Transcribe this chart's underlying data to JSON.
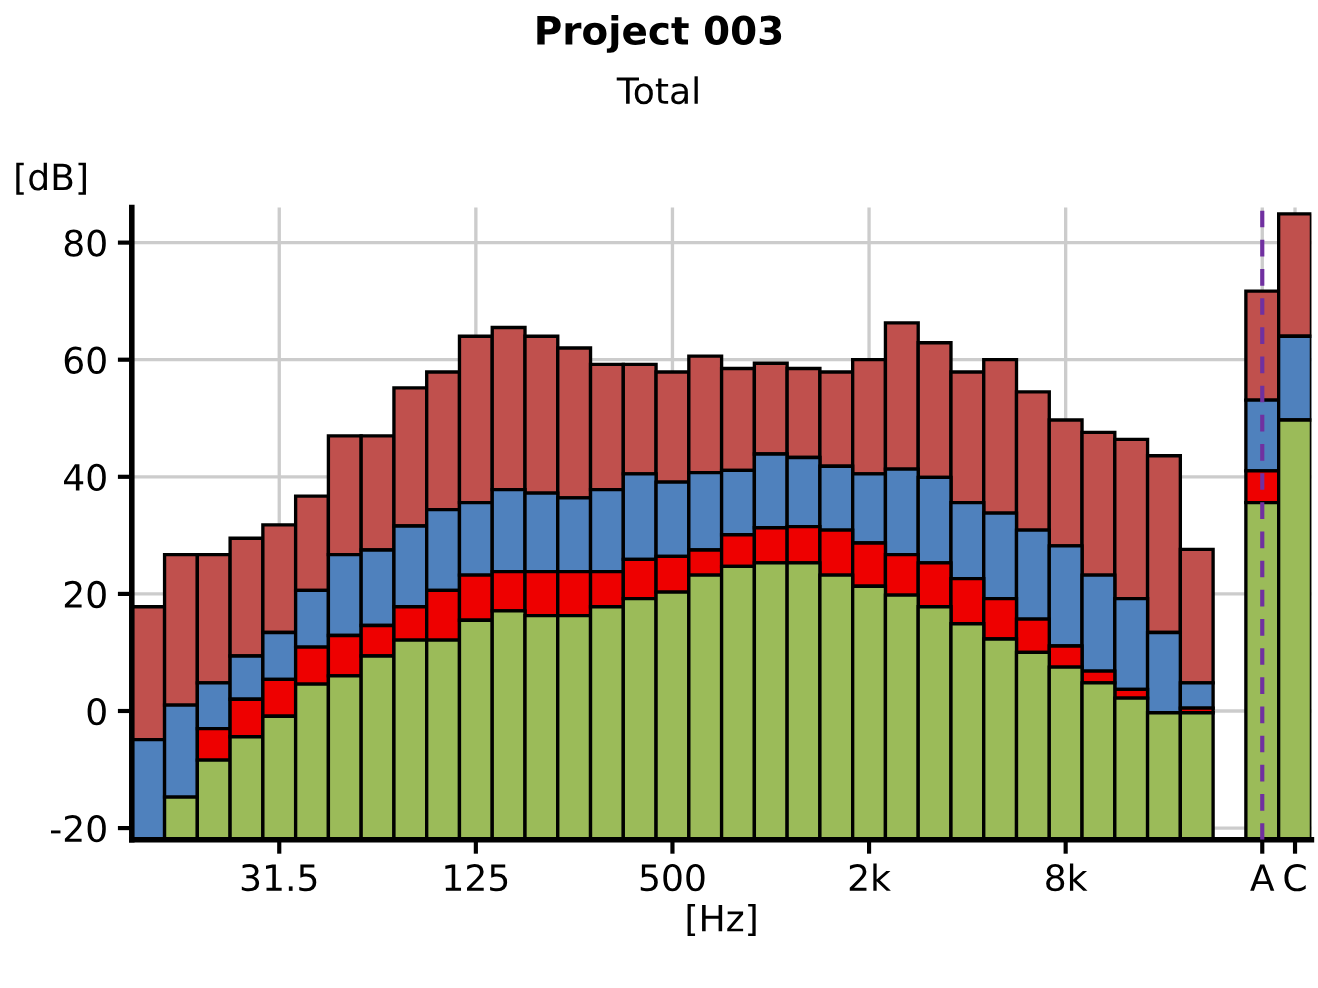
{
  "chart_data": {
    "type": "bar",
    "title": "Project 003",
    "subtitle": "Total",
    "xlabel": "[Hz]",
    "ylabel": "[dB]",
    "categories": [
      null,
      null,
      null,
      null,
      "31.5",
      null,
      null,
      null,
      null,
      null,
      "125",
      null,
      null,
      null,
      null,
      null,
      "500",
      null,
      null,
      null,
      null,
      null,
      "2k",
      null,
      null,
      null,
      null,
      null,
      "8k",
      null,
      null,
      null,
      null,
      null,
      "A",
      "C"
    ],
    "series": [
      {
        "color": "#9bbb59",
        "base": [
          null,
          -22,
          -22,
          -22,
          -22,
          -22,
          -22,
          -22,
          -22,
          -22,
          -22,
          -22,
          -22,
          -22,
          -22,
          -22,
          -22,
          -22,
          -22,
          -22,
          -22,
          -22,
          -22,
          -22,
          -22,
          -22,
          -22,
          -22,
          -22,
          -22,
          -22,
          -22,
          -22,
          null,
          -22,
          -22
        ],
        "values": [
          null,
          7.3,
          13.6,
          17.6,
          21.1,
          26.6,
          28,
          31.4,
          34.1,
          34.1,
          37.5,
          39.1,
          38.3,
          38.3,
          39.8,
          41.2,
          42.3,
          45.2,
          46.7,
          47.3,
          47.3,
          45.2,
          43.3,
          41.8,
          39.8,
          36.9,
          34.3,
          32,
          29.5,
          26.8,
          24.2,
          21.7,
          21.7,
          null,
          57.6,
          71.7
        ]
      },
      {
        "color": "#ee0000",
        "base": [
          null,
          null,
          -8.4,
          -4.4,
          -0.9,
          4.6,
          6,
          9.4,
          12.1,
          12.1,
          15.5,
          17.1,
          16.3,
          16.3,
          17.8,
          19.2,
          20.3,
          23.2,
          24.7,
          25.3,
          25.3,
          23.2,
          21.3,
          19.8,
          17.8,
          14.9,
          12.3,
          10,
          7.5,
          4.8,
          2.2,
          null,
          -0.3,
          null,
          35.6,
          null
        ],
        "values": [
          null,
          null,
          5.4,
          6.4,
          6.3,
          6.3,
          6.9,
          5.2,
          5.7,
          8.5,
          7.7,
          6.7,
          7.5,
          7.5,
          6,
          6.7,
          6.1,
          4.3,
          5.4,
          6,
          6.2,
          7.7,
          7.4,
          6.9,
          7.5,
          7.7,
          6.9,
          5.7,
          3.6,
          2,
          1.5,
          null,
          0.8,
          null,
          5.4,
          null
        ]
      },
      {
        "color": "#4f81bd",
        "base": [
          -22,
          -14.7,
          -3,
          2,
          5.4,
          10.9,
          12.9,
          14.6,
          17.8,
          20.6,
          23.2,
          23.8,
          23.8,
          23.8,
          23.8,
          25.9,
          26.4,
          27.5,
          30.1,
          31.3,
          31.5,
          30.9,
          28.7,
          26.7,
          25.3,
          22.6,
          19.2,
          15.7,
          11.1,
          6.8,
          3.7,
          -0.3,
          0.5,
          null,
          41,
          49.7
        ],
        "values": [
          17.1,
          15.7,
          7.8,
          7.4,
          8,
          9.7,
          13.8,
          12.9,
          13.8,
          13.8,
          12.4,
          14,
          13.4,
          12.6,
          14,
          14.6,
          12.7,
          13.2,
          11,
          12.6,
          11.8,
          10.9,
          11.8,
          14.6,
          14.6,
          13,
          14.6,
          15.2,
          17.1,
          16.4,
          15.5,
          13.7,
          4.3,
          null,
          12.1,
          14.3
        ]
      },
      {
        "color": "#c0504d",
        "base": [
          -4.9,
          1,
          4.8,
          9.4,
          13.4,
          20.6,
          26.7,
          27.5,
          31.6,
          34.4,
          35.6,
          37.8,
          37.2,
          36.4,
          37.8,
          40.5,
          39.1,
          40.7,
          41.1,
          43.9,
          43.3,
          41.8,
          40.5,
          41.3,
          39.9,
          35.6,
          33.8,
          30.9,
          28.2,
          23.2,
          19.2,
          13.4,
          4.8,
          null,
          53.1,
          64
        ],
        "values": [
          22.7,
          25.7,
          21.9,
          20.1,
          18.4,
          16.1,
          20.3,
          19.5,
          23.6,
          23.5,
          28.4,
          27.7,
          26.8,
          25.6,
          21.4,
          18.7,
          18.8,
          19.9,
          17.4,
          15.5,
          15.2,
          16.1,
          19.5,
          25,
          23,
          22.3,
          26.2,
          23.6,
          21.5,
          24.4,
          27.2,
          30.2,
          22.8,
          null,
          18.6,
          20.9
        ]
      }
    ],
    "ylim": [
      -22,
      86
    ],
    "yticks": [
      -20,
      0,
      20,
      40,
      60,
      80
    ],
    "grid": true,
    "ref_lines": [
      {
        "axis": "x",
        "value": "A",
        "color": "#7030a0",
        "line_style": "dashed"
      }
    ]
  }
}
